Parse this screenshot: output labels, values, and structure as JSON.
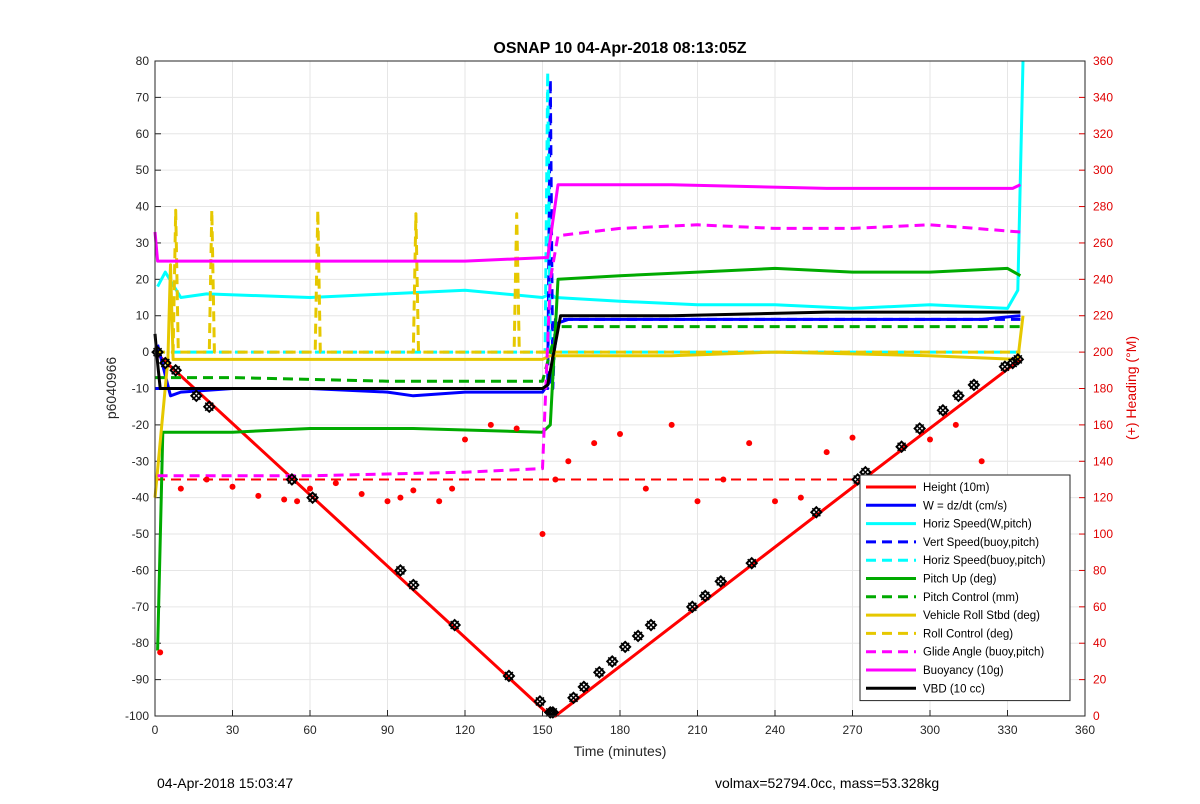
{
  "chart_data": {
    "type": "line",
    "title": "OSNAP 10 04-Apr-2018 08:13:05Z",
    "xlabel": "Time (minutes)",
    "ylabel": "p6040966",
    "y2label": "(+) Heading (°M)",
    "xlim": [
      0,
      360
    ],
    "ylim": [
      -100,
      80
    ],
    "y2lim": [
      0,
      360
    ],
    "xticks": [
      0,
      30,
      60,
      90,
      120,
      150,
      180,
      210,
      240,
      270,
      300,
      330,
      360
    ],
    "yticks": [
      80,
      70,
      60,
      50,
      40,
      30,
      20,
      10,
      0,
      -10,
      -20,
      -30,
      -40,
      -50,
      -60,
      -70,
      -80,
      -90,
      -100
    ],
    "y2ticks": [
      360,
      340,
      320,
      300,
      280,
      260,
      240,
      220,
      200,
      180,
      160,
      140,
      120,
      100,
      80,
      60,
      40,
      20,
      0
    ],
    "grid": true,
    "legend_position": "lower-right",
    "series": [
      {
        "name": "Height (10m)",
        "color": "#ff0000",
        "style": "solid",
        "x": [
          0,
          153,
          155,
          274,
          335
        ],
        "y": [
          0,
          -100,
          -100,
          -35,
          -2
        ]
      },
      {
        "name": "W = dz/dt (cm/s)",
        "color": "#0000ff",
        "style": "solid",
        "x": [
          1,
          6,
          10,
          30,
          60,
          90,
          100,
          120,
          150,
          153,
          156,
          160,
          200,
          240,
          280,
          320,
          335
        ],
        "y": [
          2,
          -12,
          -11,
          -10,
          -10,
          -11,
          -12,
          -11,
          -11,
          -8,
          8,
          9,
          9,
          9,
          9,
          9,
          10
        ]
      },
      {
        "name": "Horiz Speed(W,pitch)",
        "color": "#00ffff",
        "style": "solid",
        "x": [
          1,
          4,
          10,
          20,
          60,
          90,
          120,
          150,
          153,
          155,
          180,
          210,
          240,
          270,
          300,
          330,
          334,
          336
        ],
        "y": [
          18,
          22,
          15,
          16,
          15,
          16,
          17,
          15,
          16,
          15,
          14,
          13,
          13,
          12,
          13,
          12,
          17,
          80
        ]
      },
      {
        "name": "Vert Speed(buoy,pitch)",
        "color": "#0000ff",
        "style": "dashed",
        "x": [
          0,
          152,
          153,
          154,
          155,
          335
        ],
        "y": [
          -10,
          -10,
          75,
          -10,
          9,
          9
        ]
      },
      {
        "name": "Horiz Speed(buoy,pitch)",
        "color": "#00ffff",
        "style": "dashed",
        "x": [
          0,
          151,
          152,
          153,
          154,
          335
        ],
        "y": [
          0,
          0,
          77,
          0,
          0,
          0
        ]
      },
      {
        "name": "Pitch Up (deg)",
        "color": "#00aa00",
        "style": "solid",
        "x": [
          1,
          3,
          8,
          30,
          60,
          100,
          150,
          153,
          156,
          180,
          210,
          240,
          270,
          300,
          330,
          335
        ],
        "y": [
          -82,
          -22,
          -22,
          -22,
          -21,
          -21,
          -22,
          -20,
          20,
          21,
          22,
          23,
          22,
          22,
          23,
          21
        ]
      },
      {
        "name": "Pitch Control (mm)",
        "color": "#00aa00",
        "style": "dashed",
        "x": [
          0,
          30,
          90,
          150,
          153,
          156,
          335
        ],
        "y": [
          -7,
          -7,
          -8,
          -8,
          0,
          7,
          7
        ]
      },
      {
        "name": "Vehicle Roll Stbd (deg)",
        "color": "#e6c800",
        "style": "solid",
        "x": [
          0,
          5,
          6,
          7,
          15,
          60,
          150,
          153,
          200,
          240,
          300,
          334,
          336
        ],
        "y": [
          -40,
          -2,
          24,
          -2,
          -2,
          -2,
          -2,
          -1,
          -1,
          0,
          -1,
          -2,
          10
        ]
      },
      {
        "name": "Roll Control (deg)",
        "color": "#e6c800",
        "style": "dashed",
        "x": [
          0,
          7,
          8,
          9,
          21,
          22,
          23,
          62,
          63,
          64,
          100,
          101,
          102,
          139,
          140,
          141,
          335
        ],
        "y": [
          0,
          0,
          39,
          0,
          0,
          39,
          0,
          0,
          39,
          0,
          0,
          38,
          0,
          0,
          38,
          0,
          0
        ]
      },
      {
        "name": "Glide Angle (buoy,pitch)",
        "color": "#ff00ff",
        "style": "dashed",
        "x": [
          1,
          60,
          120,
          150,
          153,
          156,
          180,
          210,
          240,
          270,
          300,
          335
        ],
        "y": [
          -34,
          -34,
          -33,
          -32,
          20,
          32,
          34,
          35,
          34,
          34,
          35,
          33
        ]
      },
      {
        "name": "Buoyancy (10g)",
        "color": "#ff00ff",
        "style": "solid",
        "x": [
          0,
          1,
          60,
          120,
          152,
          156,
          158,
          200,
          260,
          332,
          335
        ],
        "y": [
          33,
          25,
          25,
          25,
          26,
          46,
          46,
          46,
          45,
          45,
          46
        ]
      },
      {
        "name": "VBD (10 cc)",
        "color": "#000000",
        "style": "solid",
        "x": [
          0,
          1,
          2,
          60,
          120,
          150,
          152,
          157,
          200,
          260,
          335
        ],
        "y": [
          5,
          -3,
          -10,
          -10,
          -10,
          -10,
          -9,
          10,
          10,
          11,
          11
        ]
      }
    ],
    "heading": {
      "color": "#ff0000",
      "style": "dots",
      "axis": "right",
      "x": [
        2,
        10,
        20,
        30,
        40,
        50,
        55,
        60,
        70,
        80,
        90,
        95,
        100,
        110,
        115,
        120,
        130,
        140,
        150,
        155,
        160,
        170,
        180,
        190,
        200,
        210,
        220,
        230,
        240,
        250,
        260,
        270,
        280,
        290,
        300,
        310,
        320,
        330
      ],
      "y": [
        35,
        125,
        130,
        126,
        121,
        119,
        118,
        125,
        128,
        122,
        118,
        120,
        124,
        118,
        125,
        152,
        160,
        158,
        100,
        130,
        140,
        150,
        155,
        125,
        160,
        118,
        130,
        150,
        118,
        120,
        145,
        153,
        131,
        148,
        152,
        160,
        140,
        130
      ]
    },
    "heading_reference": {
      "color": "#ff0000",
      "style": "dashed",
      "axis": "right",
      "value": 130,
      "x_range": [
        0,
        336
      ]
    },
    "markers": {
      "style": "black diamond-x",
      "series": "Height (10m)",
      "x": [
        1,
        4,
        8,
        16,
        21,
        53,
        61,
        95,
        100,
        116,
        137,
        149,
        153,
        154,
        162,
        166,
        172,
        177,
        182,
        187,
        192,
        208,
        213,
        219,
        231,
        256,
        272,
        275,
        289,
        296,
        305,
        311,
        317,
        329,
        332,
        334
      ],
      "y": [
        0,
        -3,
        -5,
        -12,
        -15,
        -35,
        -40,
        -60,
        -64,
        -75,
        -89,
        -96,
        -99,
        -99,
        -95,
        -92,
        -88,
        -85,
        -81,
        -78,
        -75,
        -70,
        -67,
        -63,
        -58,
        -44,
        -35,
        -33,
        -26,
        -21,
        -16,
        -12,
        -9,
        -4,
        -3,
        -2
      ]
    }
  },
  "footer": {
    "timestamp": "04-Apr-2018 15:03:47",
    "stats": "volmax=52794.0cc, mass=53.328kg"
  }
}
